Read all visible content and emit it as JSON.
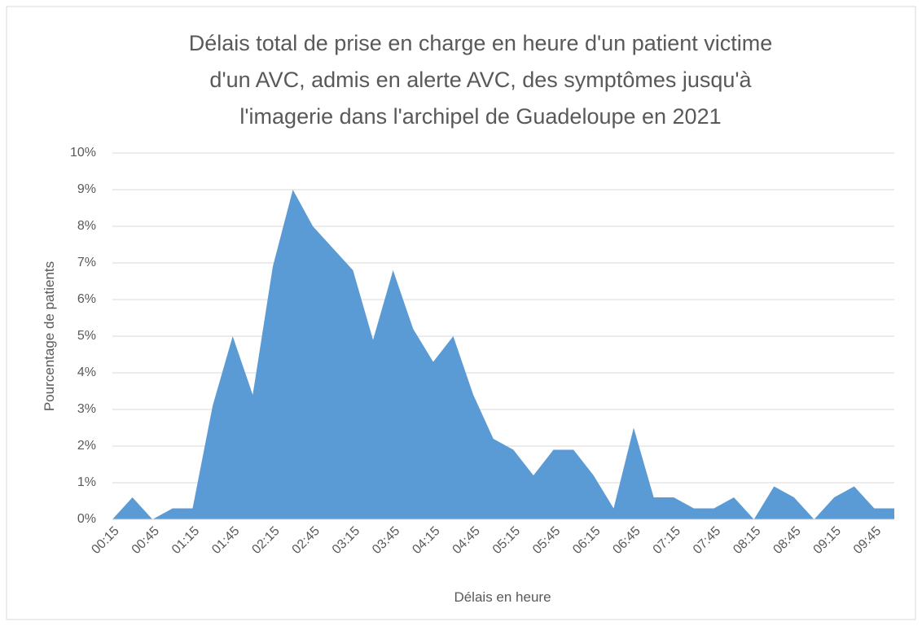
{
  "chart_data": {
    "type": "area",
    "title": [
      "Délais total de prise en charge en heure d'un patient victime",
      "d'un AVC, admis en alerte AVC, des symptômes jusqu'à",
      "l'imagerie dans l'archipel de Guadeloupe en 2021"
    ],
    "x_label": "Délais en heure",
    "y_label": "Pourcentage de patients",
    "categories": [
      "00:15",
      null,
      "00:45",
      null,
      "01:15",
      null,
      "01:45",
      null,
      "02:15",
      null,
      "02:45",
      null,
      "03:15",
      null,
      "03:45",
      null,
      "04:15",
      null,
      "04:45",
      null,
      "05:15",
      null,
      "05:45",
      null,
      "06:15",
      null,
      "06:45",
      null,
      "07:15",
      null,
      "07:45",
      null,
      "08:15",
      null,
      "08:45",
      null,
      "09:15",
      null,
      "09:45",
      null
    ],
    "values": [
      0,
      0.6,
      0,
      0.3,
      0.3,
      3.1,
      5,
      3.4,
      6.9,
      9,
      8,
      7.4,
      6.8,
      4.9,
      6.8,
      5.2,
      4.3,
      5,
      3.4,
      2.2,
      1.9,
      1.2,
      1.9,
      1.9,
      1.2,
      0.3,
      2.5,
      0.6,
      0.6,
      0.3,
      0.3,
      0.6,
      0,
      0.9,
      0.6,
      0,
      0.6,
      0.9,
      0.3,
      0.3
    ],
    "color": "#5b9bd5",
    "ylim": [
      0,
      10
    ],
    "yticks": [
      {
        "value": 0,
        "label": "0%"
      },
      {
        "value": 1,
        "label": "1%"
      },
      {
        "value": 2,
        "label": "2%"
      },
      {
        "value": 3,
        "label": "3%"
      },
      {
        "value": 4,
        "label": "4%"
      },
      {
        "value": 5,
        "label": "5%"
      },
      {
        "value": 6,
        "label": "6%"
      },
      {
        "value": 7,
        "label": "7%"
      },
      {
        "value": 8,
        "label": "8%"
      },
      {
        "value": 9,
        "label": "9%"
      },
      {
        "value": 10,
        "label": "10%"
      }
    ],
    "grid": true
  }
}
